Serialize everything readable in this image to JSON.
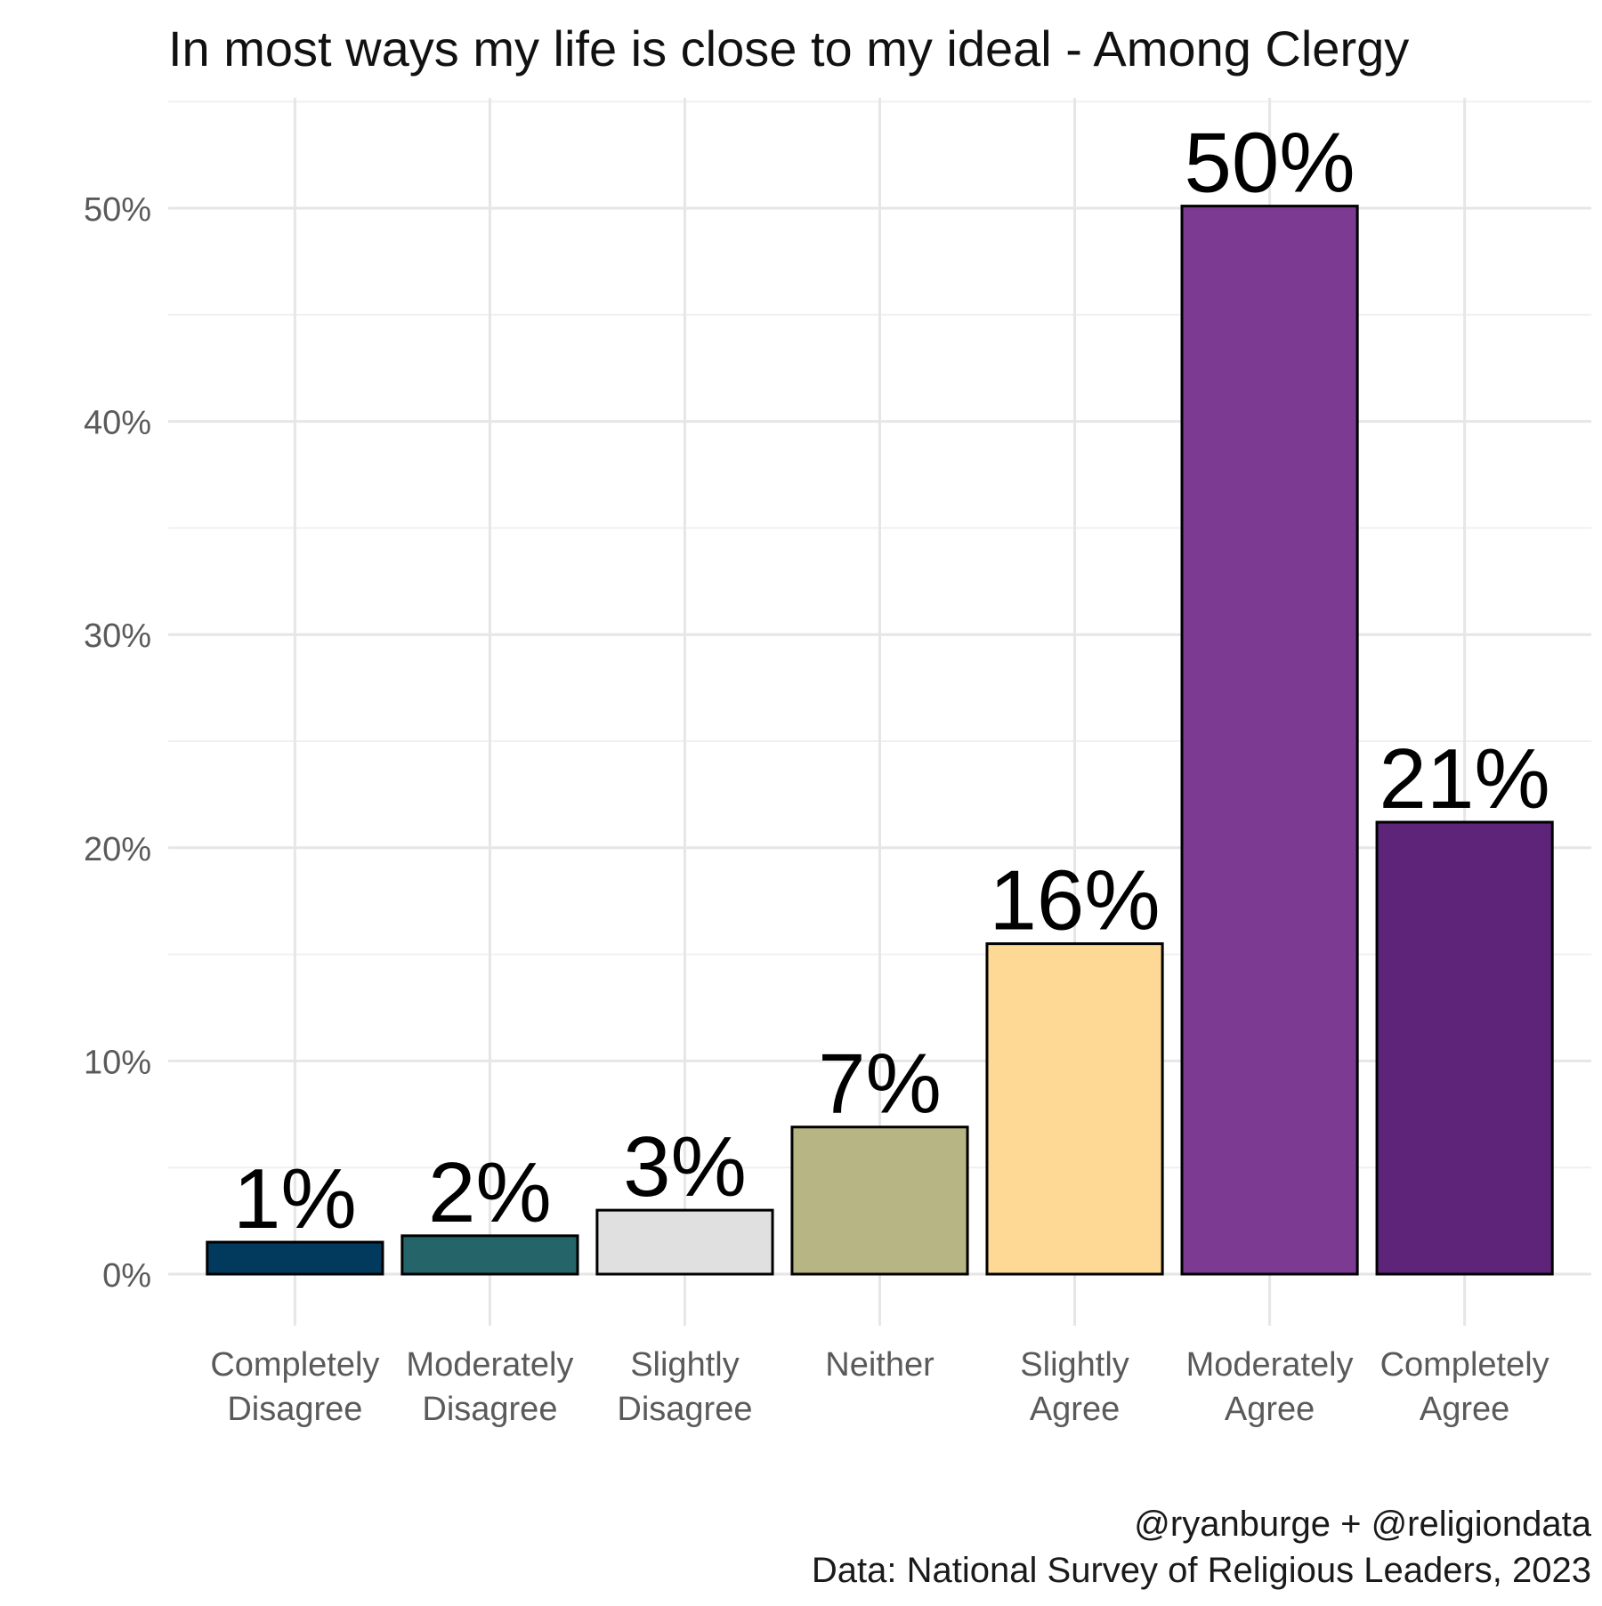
{
  "chart_data": {
    "type": "bar",
    "title": "In most ways my life is close to my ideal - Among Clergy",
    "categories": [
      [
        "Completely",
        "Disagree"
      ],
      [
        "Moderately",
        "Disagree"
      ],
      [
        "Slightly",
        "Disagree"
      ],
      [
        "Neither"
      ],
      [
        "Slightly",
        "Agree"
      ],
      [
        "Moderately",
        "Agree"
      ],
      [
        "Completely",
        "Agree"
      ]
    ],
    "values": [
      1.5,
      1.8,
      3.0,
      6.9,
      15.5,
      50.1,
      21.2
    ],
    "data_labels": [
      "1%",
      "2%",
      "3%",
      "7%",
      "16%",
      "50%",
      "21%"
    ],
    "colors": [
      "#023a5e",
      "#25656a",
      "#e0e0e0",
      "#b7b584",
      "#fdd995",
      "#7c3a93",
      "#5e247a"
    ],
    "ylim": [
      0,
      55
    ],
    "yticks": [
      0,
      10,
      20,
      30,
      40,
      50
    ],
    "ytick_labels": [
      "0%",
      "10%",
      "20%",
      "30%",
      "40%",
      "50%"
    ],
    "xlabel": "",
    "ylabel": "",
    "grid": true,
    "legend": "none"
  },
  "caption": {
    "line1": "@ryanburge + @religiondata",
    "line2": "Data: National Survey of Religious Leaders, 2023"
  }
}
